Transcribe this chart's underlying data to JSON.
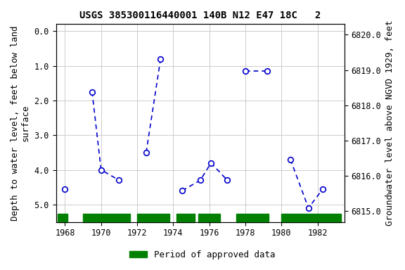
{
  "title": "USGS 385300116440001 140B N12 E47 18C   2",
  "ylabel_left": "Depth to water level, feet below land\nsurface",
  "ylabel_right": "Groundwater level above NGVD 1929, feet",
  "xlim": [
    1967.5,
    1983.5
  ],
  "ylim_left": [
    5.5,
    -0.2
  ],
  "ylim_right": [
    6814.7,
    6820.3
  ],
  "yticks_left": [
    0.0,
    1.0,
    2.0,
    3.0,
    4.0,
    5.0
  ],
  "yticks_right": [
    6815.0,
    6816.0,
    6817.0,
    6818.0,
    6819.0,
    6820.0
  ],
  "xticks": [
    1968,
    1970,
    1972,
    1974,
    1976,
    1978,
    1980,
    1982
  ],
  "segments": [
    [
      [
        1968.0
      ],
      [
        4.55
      ]
    ],
    [
      [
        1969.5,
        1970.0,
        1971.0
      ],
      [
        1.75,
        4.0,
        4.3
      ]
    ],
    [
      [
        1972.5,
        1973.3
      ],
      [
        3.5,
        0.8
      ]
    ],
    [
      [
        1974.5,
        1975.5,
        1976.1,
        1977.0
      ],
      [
        4.6,
        4.3,
        3.8,
        4.3
      ]
    ],
    [
      [
        1978.0,
        1979.2
      ],
      [
        1.15,
        1.15
      ]
    ],
    [
      [
        1980.5,
        1981.5,
        1982.3
      ],
      [
        3.7,
        5.1,
        4.55
      ]
    ]
  ],
  "line_color": "#0000cc",
  "marker_facecolor": "white",
  "marker_edgecolor": "#0000cc",
  "grid_color": "#cccccc",
  "background_color": "white",
  "title_fontsize": 10,
  "axis_label_fontsize": 9,
  "tick_fontsize": 8.5,
  "green_bar_segments": [
    [
      1967.6,
      1968.15
    ],
    [
      1969.0,
      1971.6
    ],
    [
      1972.0,
      1973.8
    ],
    [
      1974.2,
      1975.2
    ],
    [
      1975.4,
      1976.6
    ],
    [
      1977.5,
      1979.3
    ],
    [
      1980.0,
      1983.3
    ]
  ],
  "legend_label": "Period of approved data",
  "legend_green": "#008000"
}
